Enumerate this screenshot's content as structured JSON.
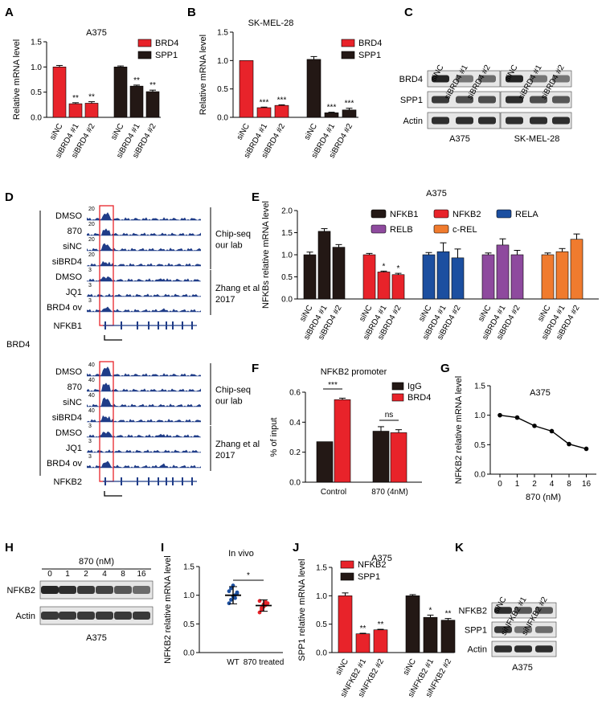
{
  "colors": {
    "red": "#e8232a",
    "black": "#231815",
    "blue": "#1c4fa0",
    "purple": "#8e4a9e",
    "orange": "#f07b2e",
    "trackBlue": "#1f3c88",
    "highlight": "#e8232a"
  },
  "panels": {
    "A": {
      "letter": "A",
      "title": "A375",
      "ylabel": "Relative mRNA level",
      "ylim": [
        0,
        1.5
      ],
      "yticks": [
        "0.0",
        "0.5",
        "1.0",
        "1.5"
      ],
      "categories": [
        "siNC",
        "siBRD4 #1",
        "siBRD4 #2",
        "siNC",
        "siBRD4 #1",
        "siBRD4 #2"
      ],
      "legend": [
        "BRD4",
        "SPP1"
      ],
      "values": [
        1.0,
        0.27,
        0.28,
        1.0,
        0.62,
        0.51
      ],
      "errors": [
        0.03,
        0.02,
        0.03,
        0.02,
        0.02,
        0.03
      ],
      "sig": [
        "",
        "**",
        "**",
        "",
        "**",
        "**"
      ]
    },
    "B": {
      "letter": "B",
      "title": "SK-MEL-28",
      "ylabel": "Relative mRNA level",
      "ylim": [
        0,
        1.5
      ],
      "yticks": [
        "0.0",
        "0.5",
        "1.0",
        "1.5"
      ],
      "categories": [
        "siNC",
        "siBRD4 #1",
        "siBRD4 #2",
        "siNC",
        "siBRD4 #1",
        "siBRD4 #2"
      ],
      "legend": [
        "BRD4",
        "SPP1"
      ],
      "values": [
        1.0,
        0.17,
        0.21,
        1.02,
        0.08,
        0.13
      ],
      "errors": [
        0.0,
        0.01,
        0.01,
        0.05,
        0.01,
        0.03
      ],
      "sig": [
        "",
        "***",
        "***",
        "",
        "***",
        "***"
      ]
    },
    "C": {
      "letter": "C",
      "lanes": [
        "siNC",
        "siBRD4 #1",
        "siBRD4 #2",
        "siNC",
        "siBRD4 #1",
        "siBRD4 #2"
      ],
      "rows": [
        "BRD4",
        "SPP1",
        "Actin"
      ],
      "cells": [
        "A375",
        "SK-MEL-28"
      ]
    },
    "D": {
      "letter": "D",
      "group": "BRD4",
      "top": {
        "tracks": [
          {
            "label": "DMSO",
            "scale": "20"
          },
          {
            "label": "870",
            "scale": "20"
          },
          {
            "label": "siNC",
            "scale": "20"
          },
          {
            "label": "siBRD4",
            "scale": "20"
          },
          {
            "label": "DMSO",
            "scale": "3"
          },
          {
            "label": "JQ1",
            "scale": "3"
          },
          {
            "label": "BRD4 ov",
            "scale": "3"
          }
        ],
        "gene": "NFKB1",
        "bracket1": "Chip-seq\nour lab",
        "bracket2": "Zhang et al\n2017"
      },
      "bottom": {
        "tracks": [
          {
            "label": "DMSO",
            "scale": "40"
          },
          {
            "label": "870",
            "scale": "40"
          },
          {
            "label": "siNC",
            "scale": "40"
          },
          {
            "label": "siBRD4",
            "scale": "40"
          },
          {
            "label": "DMSO",
            "scale": "3"
          },
          {
            "label": "JQ1",
            "scale": "3"
          },
          {
            "label": "BRD4 ov",
            "scale": "3"
          }
        ],
        "gene": "NFKB2",
        "bracket1": "Chip-seq\nour lab",
        "bracket2": "Zhang et al\n2017"
      }
    },
    "E": {
      "letter": "E",
      "title": "A375",
      "ylabel": "NFKBs relative mRNA level",
      "ylim": [
        0,
        2.0
      ],
      "yticks": [
        "0.0",
        "0.5",
        "1.0",
        "1.5",
        "2.0"
      ],
      "legend": [
        "NFKB1",
        "NFKB2",
        "RELA",
        "RELB",
        "c-REL"
      ],
      "categories": [
        "siNC",
        "siBRD4 #1",
        "siBRD4 #2"
      ],
      "values": [
        [
          1.0,
          1.53,
          1.17
        ],
        [
          1.0,
          0.61,
          0.55
        ],
        [
          1.0,
          1.07,
          0.93
        ],
        [
          1.0,
          1.22,
          1.0
        ],
        [
          1.0,
          1.07,
          1.35
        ]
      ],
      "errors": [
        [
          0.06,
          0.06,
          0.06
        ],
        [
          0.03,
          0.02,
          0.03
        ],
        [
          0.05,
          0.2,
          0.2
        ],
        [
          0.04,
          0.14,
          0.1
        ],
        [
          0.04,
          0.07,
          0.12
        ]
      ],
      "sig": [
        [
          "",
          "",
          ""
        ],
        [
          "",
          "*",
          "*"
        ],
        [
          "",
          "",
          ""
        ],
        [
          "",
          "",
          ""
        ],
        [
          "",
          "",
          ""
        ]
      ]
    },
    "F": {
      "letter": "F",
      "title": "NFKB2 promoter",
      "ylabel": "% of input",
      "ylim": [
        0,
        0.6
      ],
      "yticks": [
        "0.0",
        "0.2",
        "0.4",
        "0.6"
      ],
      "groups": [
        "Control",
        "870 (4nM)"
      ],
      "legend": [
        "IgG",
        "BRD4"
      ],
      "values": [
        [
          0.27,
          0.55
        ],
        [
          0.34,
          0.33
        ]
      ],
      "errors": [
        [
          0.0,
          0.01
        ],
        [
          0.03,
          0.02
        ]
      ],
      "sig": [
        "***",
        "ns"
      ]
    },
    "G": {
      "letter": "G",
      "title": "A375",
      "ylabel": "NFKB2 relative mRNA level",
      "xlabel": "870 (nM)",
      "ylim": [
        0,
        1.5
      ],
      "yticks": [
        "0.0",
        "0.5",
        "1.0",
        "1.5"
      ],
      "x": [
        "0",
        "1",
        "2",
        "4",
        "8",
        "16"
      ],
      "values": [
        1.0,
        0.96,
        0.82,
        0.73,
        0.51,
        0.43
      ],
      "errors": [
        0.02,
        0.02,
        0.02,
        0.02,
        0.02,
        0.03
      ]
    },
    "H": {
      "letter": "H",
      "dose": "870 (nM)",
      "lanes": [
        "0",
        "1",
        "2",
        "4",
        "8",
        "16"
      ],
      "rows": [
        "NFKB2",
        "Actin"
      ],
      "cell": "A375"
    },
    "I": {
      "letter": "I",
      "title": "In vivo",
      "ylabel": "NFKB2 relative mRNA level",
      "ylim": [
        0,
        1.5
      ],
      "yticks": [
        "0.0",
        "0.5",
        "1.0",
        "1.5"
      ],
      "groups": [
        "WT",
        "870 treated"
      ],
      "mean": [
        1.0,
        0.82
      ],
      "sd": [
        0.15,
        0.1
      ],
      "sig": "*",
      "points": [
        [
          0.86,
          0.92,
          0.98,
          1.0,
          1.03,
          1.07,
          1.12,
          1.17,
          0.95,
          1.05
        ],
        [
          0.7,
          0.75,
          0.8,
          0.83,
          0.86,
          0.9,
          0.78,
          0.84,
          0.88
        ]
      ]
    },
    "J": {
      "letter": "J",
      "title": "A375",
      "ylabel": "SPP1 relative mRNA level",
      "ylim": [
        0,
        1.5
      ],
      "yticks": [
        "0.0",
        "0.5",
        "1.0",
        "1.5"
      ],
      "categories": [
        "siNC",
        "siNFKB2 #1",
        "siNFKB2 #2",
        "siNC",
        "siNFKB2 #1",
        "siNFKB2 #2"
      ],
      "legend": [
        "NFKB2",
        "SPP1"
      ],
      "values": [
        1.0,
        0.33,
        0.4,
        1.0,
        0.62,
        0.57
      ],
      "errors": [
        0.05,
        0.01,
        0.01,
        0.02,
        0.04,
        0.03
      ],
      "sig": [
        "",
        "**",
        "**",
        "",
        "*",
        "**"
      ]
    },
    "K": {
      "letter": "K",
      "lanes": [
        "siNC",
        "siNFKB2 #1",
        "siNFKB2 #2"
      ],
      "rows": [
        "NFKB2",
        "SPP1",
        "Actin"
      ],
      "cell": "A375"
    }
  },
  "chart_data": [
    {
      "type": "bar",
      "title": "A375",
      "ylabel": "Relative mRNA level",
      "categories": [
        "siNC",
        "siBRD4 #1",
        "siBRD4 #2"
      ],
      "series": [
        {
          "name": "BRD4",
          "values": [
            1.0,
            0.27,
            0.28
          ]
        },
        {
          "name": "SPP1",
          "values": [
            1.0,
            0.62,
            0.51
          ]
        }
      ],
      "ylim": [
        0,
        1.5
      ]
    },
    {
      "type": "bar",
      "title": "SK-MEL-28",
      "ylabel": "Relative mRNA level",
      "categories": [
        "siNC",
        "siBRD4 #1",
        "siBRD4 #2"
      ],
      "series": [
        {
          "name": "BRD4",
          "values": [
            1.0,
            0.17,
            0.21
          ]
        },
        {
          "name": "SPP1",
          "values": [
            1.02,
            0.08,
            0.13
          ]
        }
      ],
      "ylim": [
        0,
        1.5
      ]
    },
    {
      "type": "bar",
      "title": "A375",
      "ylabel": "NFKBs relative mRNA level",
      "categories": [
        "siNC",
        "siBRD4 #1",
        "siBRD4 #2"
      ],
      "series": [
        {
          "name": "NFKB1",
          "values": [
            1.0,
            1.53,
            1.17
          ]
        },
        {
          "name": "NFKB2",
          "values": [
            1.0,
            0.61,
            0.55
          ]
        },
        {
          "name": "RELA",
          "values": [
            1.0,
            1.07,
            0.93
          ]
        },
        {
          "name": "RELB",
          "values": [
            1.0,
            1.22,
            1.0
          ]
        },
        {
          "name": "c-REL",
          "values": [
            1.0,
            1.07,
            1.35
          ]
        }
      ],
      "ylim": [
        0,
        2.0
      ]
    },
    {
      "type": "bar",
      "title": "NFKB2 promoter",
      "ylabel": "% of input",
      "categories": [
        "Control",
        "870 (4nM)"
      ],
      "series": [
        {
          "name": "IgG",
          "values": [
            0.27,
            0.34
          ]
        },
        {
          "name": "BRD4",
          "values": [
            0.55,
            0.33
          ]
        }
      ],
      "ylim": [
        0,
        0.6
      ]
    },
    {
      "type": "line",
      "title": "A375",
      "xlabel": "870 (nM)",
      "ylabel": "NFKB2 relative mRNA level",
      "x": [
        "0",
        "1",
        "2",
        "4",
        "8",
        "16"
      ],
      "values": [
        1.0,
        0.96,
        0.82,
        0.73,
        0.51,
        0.43
      ],
      "ylim": [
        0,
        1.5
      ]
    },
    {
      "type": "scatter",
      "title": "In vivo",
      "ylabel": "NFKB2 relative mRNA level",
      "categories": [
        "WT",
        "870 treated"
      ],
      "mean": [
        1.0,
        0.82
      ],
      "ylim": [
        0,
        1.5
      ]
    },
    {
      "type": "bar",
      "title": "A375",
      "ylabel": "SPP1 relative mRNA level",
      "categories": [
        "siNC",
        "siNFKB2 #1",
        "siNFKB2 #2"
      ],
      "series": [
        {
          "name": "NFKB2",
          "values": [
            1.0,
            0.33,
            0.4
          ]
        },
        {
          "name": "SPP1",
          "values": [
            1.0,
            0.62,
            0.57
          ]
        }
      ],
      "ylim": [
        0,
        1.5
      ]
    }
  ]
}
